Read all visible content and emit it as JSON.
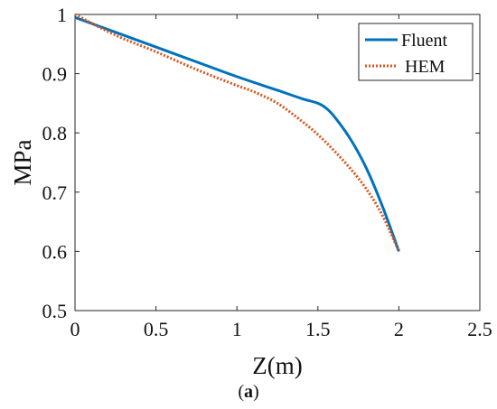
{
  "chart_data": {
    "type": "line",
    "title": "",
    "xlabel": "Z(m)",
    "ylabel": "MPa",
    "xlim": [
      0,
      2.5
    ],
    "ylim": [
      0.5,
      1.0
    ],
    "x_ticks": [
      "0",
      "0.5",
      "1",
      "1.5",
      "2",
      "2.5"
    ],
    "y_ticks": [
      "0.5",
      "0.6",
      "0.7",
      "0.8",
      "0.9",
      "1"
    ],
    "grid": false,
    "legend_position": "top-right",
    "series": [
      {
        "name": "Fluent",
        "style": "solid",
        "color": "#0072BD",
        "x": [
          0,
          0.25,
          0.5,
          0.75,
          1.0,
          1.25,
          1.4,
          1.5,
          1.55,
          1.6,
          1.7,
          1.8,
          1.9,
          2.0
        ],
        "y": [
          0.995,
          0.97,
          0.945,
          0.92,
          0.895,
          0.872,
          0.858,
          0.85,
          0.842,
          0.828,
          0.79,
          0.74,
          0.675,
          0.6
        ]
      },
      {
        "name": "HEM",
        "style": "dotted",
        "color": "#D95319",
        "x": [
          0,
          0.25,
          0.5,
          0.75,
          1.0,
          1.1,
          1.25,
          1.4,
          1.5,
          1.6,
          1.7,
          1.8,
          1.9,
          2.0
        ],
        "y": [
          1.0,
          0.965,
          0.937,
          0.907,
          0.88,
          0.87,
          0.85,
          0.82,
          0.797,
          0.77,
          0.74,
          0.705,
          0.66,
          0.6
        ]
      }
    ]
  },
  "caption": {
    "open": "(",
    "letter": "a",
    "close": ")"
  }
}
